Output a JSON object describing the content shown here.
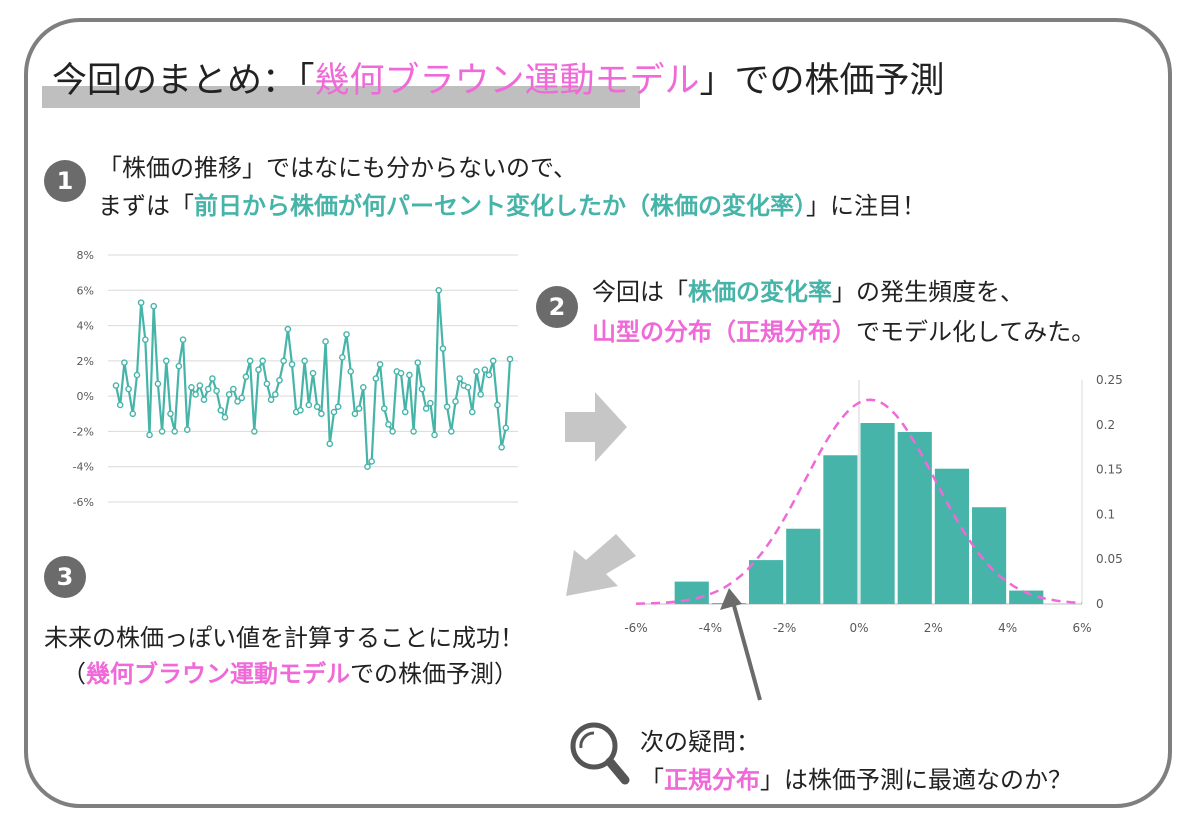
{
  "title": {
    "part1": "今回のまとめ：「",
    "highlight": "幾何ブラウン運動モデル",
    "part2": "」での株価予測"
  },
  "step1": {
    "number": "1",
    "line1": "「株価の推移」ではなにも分からないので、",
    "line2_pre": "まずは「",
    "line2_highlight": "前日から株価が何パーセント変化したか（株価の変化率）",
    "line2_post": "」に注目！"
  },
  "step2": {
    "number": "2",
    "line1_pre": "今回は「",
    "line1_highlight": "株価の変化率",
    "line1_post": "」の発生頻度を、",
    "line2_highlight": "山型の分布（正規分布）",
    "line2_post": "でモデル化してみた。"
  },
  "step3": {
    "number": "3",
    "line1": "未来の株価っぽい値を計算することに成功！",
    "line2_pre": "（",
    "line2_highlight": "幾何ブラウン運動モデル",
    "line2_post": "での株価予測）"
  },
  "question": {
    "line1": "次の疑問：",
    "line2_pre": "「",
    "line2_highlight": "正規分布",
    "line2_post": "」は株価予測に最適なのか？"
  },
  "icons": {
    "magnifier": "magnifier-icon",
    "arrow_right": "arrow-right-icon",
    "arrow_down_left": "arrow-down-left-icon"
  },
  "colors": {
    "teal": "#46b4a8",
    "pink": "#ef6ad8",
    "gray": "#6b6b6b"
  },
  "chart_data": [
    {
      "type": "line",
      "yticks": [
        "8%",
        "6%",
        "4%",
        "2%",
        "0%",
        "-2%",
        "-4%",
        "-6%"
      ],
      "ylim": [
        -6,
        8
      ],
      "grid": true,
      "values": [
        0.6,
        -0.5,
        1.9,
        0.4,
        -1.0,
        1.2,
        5.3,
        3.2,
        -2.2,
        5.1,
        0.7,
        -2.0,
        2.0,
        -1.0,
        -2.0,
        1.7,
        3.2,
        -1.9,
        0.5,
        0.1,
        0.6,
        -0.2,
        0.4,
        1.0,
        0.3,
        -0.8,
        -1.2,
        0.1,
        0.4,
        -0.3,
        -0.1,
        1.1,
        2.0,
        -2.0,
        1.5,
        2.0,
        0.7,
        -0.2,
        0.1,
        0.9,
        2.0,
        3.8,
        1.8,
        -0.9,
        -0.8,
        2.0,
        -0.5,
        1.3,
        -0.6,
        -1.0,
        3.1,
        -2.7,
        -0.9,
        -0.6,
        2.2,
        3.5,
        1.4,
        -1.0,
        -0.7,
        0.5,
        -4.0,
        -3.7,
        1.0,
        1.8,
        -0.7,
        -1.6,
        -2.0,
        1.4,
        1.3,
        -0.9,
        1.2,
        -2.0,
        1.9,
        0.4,
        -0.7,
        -0.4,
        -2.2,
        6.0,
        2.7,
        -0.6,
        -2.0,
        -0.3,
        1.0,
        0.6,
        0.5,
        -0.9,
        1.4,
        0.1,
        1.5,
        1.2,
        2.0,
        -0.5,
        -2.9,
        -1.8,
        2.1
      ]
    },
    {
      "type": "bar",
      "xticks": [
        "-6%",
        "-4%",
        "-2%",
        "0%",
        "2%",
        "4%",
        "6%"
      ],
      "yticks": [
        "0.25",
        "0.2",
        "0.15",
        "0.1",
        "0.05",
        "0"
      ],
      "xlim": [
        -6,
        6
      ],
      "ylim": [
        0,
        0.25
      ],
      "bin_width": 1,
      "bins": [
        -6,
        -5,
        -4,
        -3,
        -2,
        -1,
        0,
        1,
        2,
        3,
        4,
        5
      ],
      "values": [
        0,
        0.025,
        0.001,
        0.049,
        0.084,
        0.166,
        0.202,
        0.192,
        0.151,
        0.108,
        0.015,
        0
      ],
      "curve": {
        "type": "normal",
        "mean": 0.3,
        "sd": 1.75,
        "style": "dashed"
      }
    }
  ]
}
